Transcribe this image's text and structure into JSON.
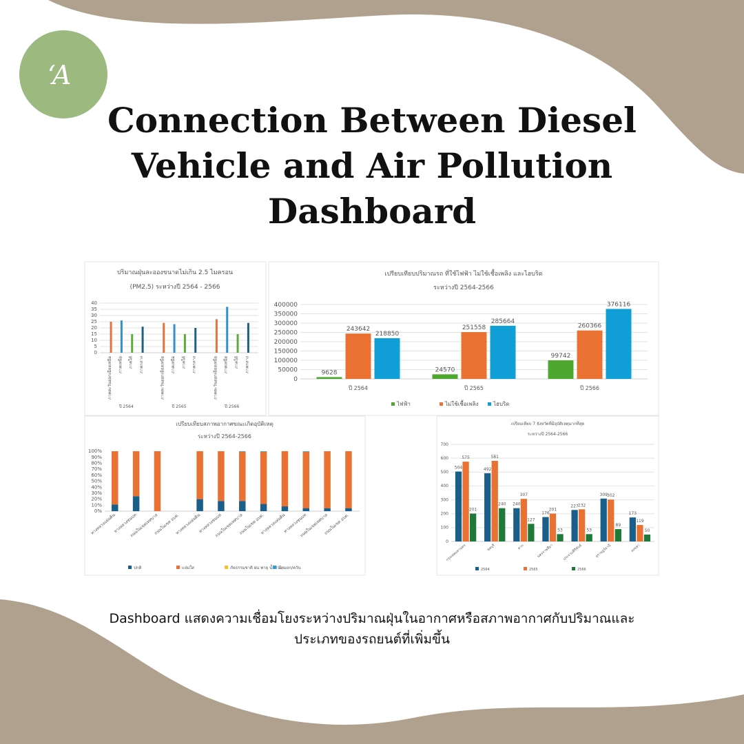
{
  "logo": "‘A",
  "title": [
    "Connection Between Diesel",
    "Vehicle and Air Pollution",
    "Dashboard"
  ],
  "caption": [
    "Dashboard แสดงความเชื่อมโยงระหว่างปริมาณฝุ่นในอากาศหรือสภาพอากาศกับปริมาณและ",
    "ประเภทของรถยนต์ที่เพิ่มขึ้น"
  ],
  "chart_data": [
    {
      "type": "bar",
      "title": "ปริมาณฝุ่นละอองขนาดไม่เกิน 2.5 ไมครอน",
      "subtitle": "(PM2.5) ระหว่างปี 2564 - 2566",
      "categories": [
        "ปี 2564",
        "ปี 2565",
        "ปี 2566"
      ],
      "series": [
        {
          "name": "ภาคตะวันออกเฉียงเหนือ",
          "color": "#e8703a",
          "values": [
            25,
            24,
            27
          ]
        },
        {
          "name": "ภาคเหนือ",
          "color": "#2f8fcf",
          "values": [
            26,
            23,
            37
          ]
        },
        {
          "name": "ภาคใต้",
          "color": "#5aab3a",
          "values": [
            15,
            15,
            15
          ]
        },
        {
          "name": "ภาคกลาง",
          "color": "#1f5f82",
          "values": [
            21,
            20,
            24
          ]
        }
      ],
      "ylim": [
        0,
        40
      ],
      "yticks": [
        0,
        5,
        10,
        15,
        20,
        25,
        30,
        35,
        40
      ],
      "grid": true
    },
    {
      "type": "bar",
      "title": "เปรียบเทียบปริมาณรถ ที่ใช้ไฟฟ้า ไม่ใช้เชื้อเพลิง และไฮบริด",
      "subtitle": "ระหว่างปี 2564-2566",
      "categories": [
        "ปี 2564",
        "ปี 2565",
        "ปี 2566"
      ],
      "series": [
        {
          "name": "ไฟฟ้า",
          "color": "#4ea72e",
          "values": [
            9628,
            24570,
            99742
          ]
        },
        {
          "name": "ไม่ใช้เชื้อเพลิง",
          "color": "#e97132",
          "values": [
            243642,
            251558,
            260366
          ]
        },
        {
          "name": "ไฮบริด",
          "color": "#0f9ed5",
          "values": [
            218850,
            285664,
            376116
          ]
        }
      ],
      "ylim": [
        0,
        400000
      ],
      "yticks": [
        0,
        50000,
        100000,
        150000,
        200000,
        250000,
        300000,
        350000,
        400000
      ],
      "grid": true,
      "data_labels": true,
      "legend": "bottom"
    },
    {
      "type": "bar",
      "stacked": true,
      "title": "เปรียบเทียบสภาพอากาศขณะเกิดอุบัติเหตุ",
      "subtitle": "ระหว่างปี 2564-2566",
      "categories": [
        "ทางหลวงแผ่นดิน",
        "ทางหลวงชนบท",
        "ถนนในเขตเทศบาล",
        "ถนนในเขต อบต.",
        "ทางหลวงแผ่นดิน",
        "ทางหลวงชนบท",
        "ถนนในเขตเทศบาล",
        "ถนนในเขต อบต.",
        "ทางหลวงแผ่นดิน",
        "ทางหลวงชนบท",
        "ถนนในเขตเทศบาล",
        "ถนนในเขต อบต."
      ],
      "series": [
        {
          "name": "ปกติ",
          "color": "#1a5e8a",
          "values": [
            11,
            25,
            0,
            null,
            20,
            17,
            17,
            12,
            8,
            5,
            5,
            5
          ]
        },
        {
          "name": "แจ่มใส",
          "color": "#e97132",
          "values": [
            89,
            75,
            100,
            null,
            80,
            83,
            82,
            87,
            92,
            94,
            95,
            95
          ]
        },
        {
          "name": "ภัยธรรมชาติ ฝน พายุ น้ำท่วม",
          "color": "#f5c02a",
          "values": [
            0,
            0,
            0,
            null,
            0,
            0,
            0,
            0,
            0,
            0,
            0,
            0
          ]
        },
        {
          "name": "มีหมอก/ควัน",
          "color": "#2fa0d8",
          "values": [
            0,
            0,
            0,
            null,
            0,
            0,
            1,
            1,
            0,
            1,
            0,
            0
          ]
        }
      ],
      "ylim": [
        0,
        100
      ],
      "yticks": [
        {
          "value": 0,
          "label": "0%"
        },
        {
          "value": 10,
          "label": "10%"
        },
        {
          "value": 20,
          "label": "20%"
        },
        {
          "value": 30,
          "label": "30%"
        },
        {
          "value": 40,
          "label": "40%"
        },
        {
          "value": 50,
          "label": "50%"
        },
        {
          "value": 60,
          "label": "60%"
        },
        {
          "value": 70,
          "label": "70%"
        },
        {
          "value": 80,
          "label": "80%"
        },
        {
          "value": 90,
          "label": "90%"
        },
        {
          "value": 100,
          "label": "100%"
        }
      ],
      "legend": "bottom"
    },
    {
      "type": "bar",
      "title": "เปรียบเทียบ 7 จังหวัดที่มีอุบัติเหตุมากที่สุด",
      "subtitle": "ระหว่างปี 2564-2566",
      "categories": [
        "กรุงเทพมหานคร",
        "ชลบุรี",
        "ตาก",
        "นครราชสีมา",
        "ประจวบคีรีขันธ์",
        "สุราษฎร์ธานี",
        "สงขลา"
      ],
      "series": [
        {
          "name": "2564",
          "color": "#1a5e8a",
          "values": [
            504,
            492,
            240,
            176,
            227,
            309,
            173
          ]
        },
        {
          "name": "2565",
          "color": "#e97132",
          "values": [
            575,
            581,
            307,
            201,
            232,
            302,
            119
          ]
        },
        {
          "name": "2566",
          "color": "#1f7a3a",
          "values": [
            201,
            240,
            127,
            53,
            53,
            89,
            50
          ]
        }
      ],
      "ylim": [
        0,
        700
      ],
      "yticks": [
        0,
        100,
        200,
        300,
        400,
        500,
        600,
        700
      ],
      "grid": true,
      "data_labels": true,
      "legend": "bottom"
    }
  ]
}
